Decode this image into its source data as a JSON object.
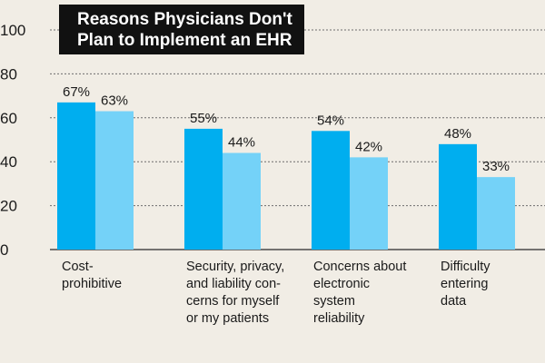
{
  "chart_data": {
    "type": "bar",
    "title": [
      "Reasons Physicians Don't",
      "Plan to Implement an EHR"
    ],
    "categories": [
      "Cost-\nprohibitive",
      "Security, privacy,\nand liability con-\ncerns for myself\nor my patients",
      "Concerns about\nelectronic\nsystem\nreliability",
      "Difficulty\nentering\ndata"
    ],
    "series": [
      {
        "name": "dark",
        "color": "#00aeef",
        "values": [
          67,
          55,
          54,
          48
        ],
        "labels": [
          "67%",
          "55%",
          "54%",
          "48%"
        ]
      },
      {
        "name": "light",
        "color": "#74d2f8",
        "values": [
          63,
          44,
          42,
          33
        ],
        "labels": [
          "63%",
          "44%",
          "42%",
          "33%"
        ]
      }
    ],
    "yticks": [
      "0",
      "20",
      "40",
      "60",
      "80",
      "100"
    ],
    "ylim": [
      0,
      100
    ],
    "grid": true,
    "xlabel": "",
    "ylabel": ""
  }
}
